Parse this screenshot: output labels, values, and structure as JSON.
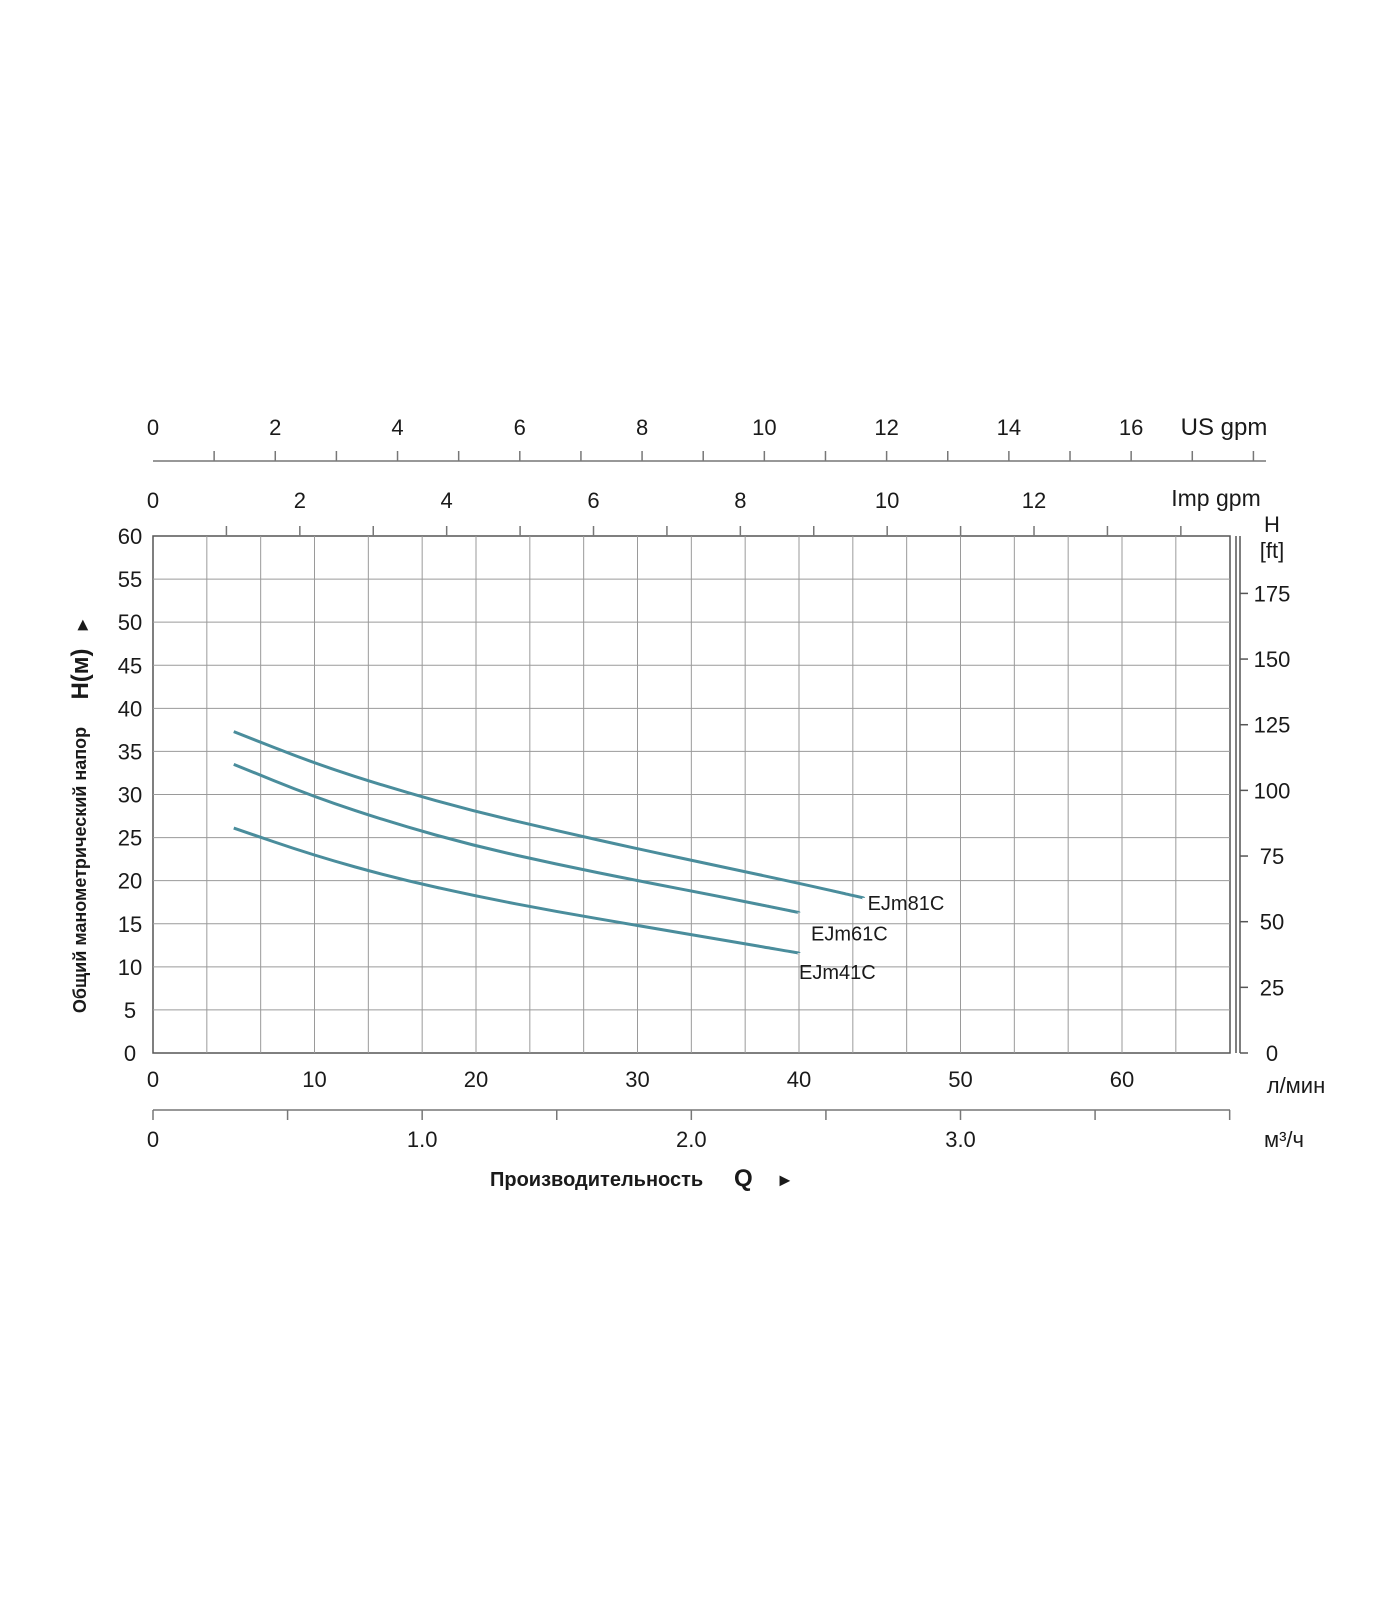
{
  "chart_data": {
    "type": "line",
    "ylabel": "Общий манометрический напор",
    "ylabel_symbol": "H(м)",
    "ylabel_arrow": "►",
    "y_right_label_line1": "H",
    "y_right_label_line2": "[ft]",
    "xlabel": "Производительность",
    "xlabel_symbol": "Q",
    "xlabel_arrow": "►",
    "x_unit_lmin": "л/мин",
    "x_unit_m3h": "м³/ч",
    "top_axis_us_label": "US gpm",
    "top_axis_imp_label": "Imp gpm",
    "xlim": [
      0,
      67
    ],
    "ylim": [
      0,
      60
    ],
    "grid": true,
    "ticks": {
      "y_left": [
        "0",
        "5",
        "10",
        "15",
        "20",
        "25",
        "30",
        "35",
        "40",
        "45",
        "50",
        "55",
        "60"
      ],
      "y_right_ft": [
        "0",
        "25",
        "50",
        "75",
        "100",
        "125",
        "150",
        "175"
      ],
      "x_lmin": [
        "0",
        "10",
        "20",
        "30",
        "40",
        "50",
        "60"
      ],
      "x_m3h": [
        "0",
        "1.0",
        "2.0",
        "3.0"
      ],
      "us_gpm": [
        "0",
        "2",
        "4",
        "6",
        "8",
        "10",
        "12",
        "14",
        "16"
      ],
      "imp_gpm": [
        "0",
        "2",
        "4",
        "6",
        "8",
        "10",
        "12"
      ]
    },
    "series": [
      {
        "name": "EJm81C",
        "x": [
          5,
          10,
          15,
          20,
          25,
          30,
          35,
          40,
          44
        ],
        "y": [
          37.3,
          33.6,
          30.6,
          28.0,
          25.8,
          23.7,
          21.7,
          19.7,
          18.0
        ]
      },
      {
        "name": "EJm61C",
        "x": [
          5,
          10,
          15,
          20,
          25,
          30,
          35,
          40
        ],
        "y": [
          33.5,
          29.7,
          26.6,
          24.0,
          21.9,
          20.0,
          18.2,
          16.3
        ]
      },
      {
        "name": "EJm41C",
        "x": [
          5,
          10,
          15,
          20,
          25,
          30,
          35,
          40
        ],
        "y": [
          26.1,
          22.9,
          20.3,
          18.2,
          16.4,
          14.8,
          13.2,
          11.6
        ]
      }
    ],
    "line_color": "#4a8d9c"
  }
}
